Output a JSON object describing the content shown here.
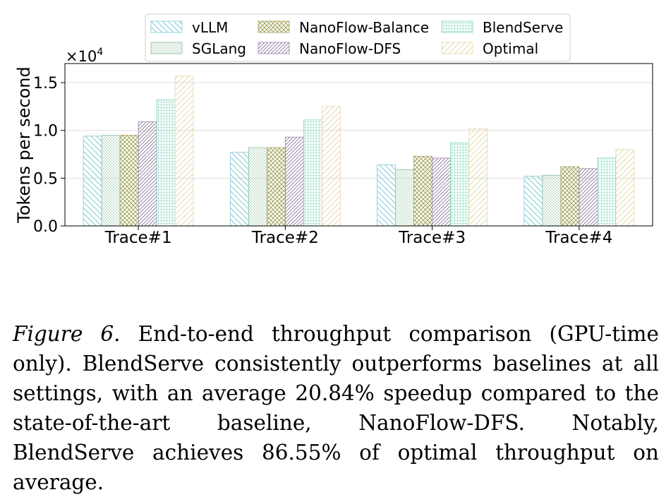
{
  "chart_data": {
    "type": "bar",
    "categories": [
      "Trace#1",
      "Trace#2",
      "Trace#3",
      "Trace#4"
    ],
    "series": [
      {
        "name": "vLLM",
        "values": [
          9400,
          7700,
          6400,
          5200
        ],
        "color": "#7ecbd6",
        "pattern": "diag-back"
      },
      {
        "name": "SGLang",
        "values": [
          9500,
          8200,
          5900,
          5300
        ],
        "color": "#8fc2a0",
        "pattern": "dots"
      },
      {
        "name": "NanoFlow-Balance",
        "values": [
          9500,
          8200,
          7300,
          6200
        ],
        "color": "#a3a35c",
        "pattern": "cross"
      },
      {
        "name": "NanoFlow-DFS",
        "values": [
          10900,
          9300,
          7100,
          6000
        ],
        "color": "#9a85a8",
        "pattern": "diag-fwd-dense"
      },
      {
        "name": "BlendServe",
        "values": [
          13200,
          11100,
          8700,
          7100
        ],
        "color": "#7fd6b8",
        "pattern": "grid"
      },
      {
        "name": "Optimal",
        "values": [
          15700,
          12500,
          10200,
          8000
        ],
        "color": "#e6d9a8",
        "pattern": "diag-back-light"
      }
    ],
    "ylabel": "Tokens per second",
    "xlabel": "",
    "ylim": [
      0,
      17000
    ],
    "yticks": [
      0,
      5000,
      10000,
      15000
    ],
    "ytick_labels": [
      "0.0",
      "0.5",
      "1.0",
      "1.5"
    ],
    "y_offset_label": "×10",
    "y_offset_exp": "4",
    "grid": true,
    "legend_position": "top-center"
  },
  "caption": {
    "label": "Figure 6.",
    "text": " End-to-end throughput comparison (GPU-time only). BlendServe consistently outperforms baselines at all settings, with an average 20.84% speedup compared to the state-of-the-art baseline, NanoFlow-DFS. Notably, BlendServe achieves 86.55% of optimal throughput on average."
  }
}
